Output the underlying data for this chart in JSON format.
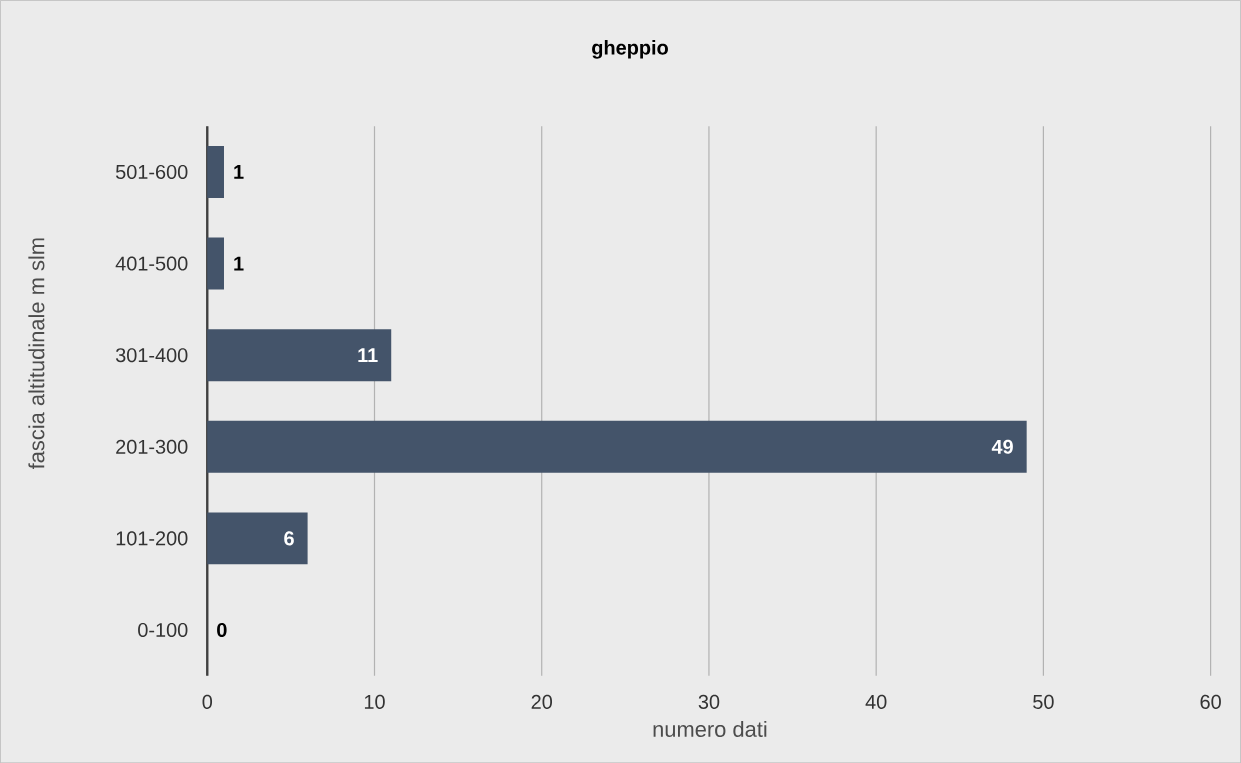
{
  "chart_data": {
    "type": "bar",
    "orientation": "horizontal",
    "title": "gheppio",
    "xlabel": "numero dati",
    "ylabel": "fascia altitudinale m slm",
    "categories": [
      "501-600",
      "401-500",
      "301-400",
      "201-300",
      "101-200",
      "0-100"
    ],
    "values": [
      1,
      1,
      11,
      49,
      6,
      0
    ],
    "color": "#44546a",
    "xlim": [
      0,
      60
    ],
    "xticks": [
      0,
      10,
      20,
      30,
      40,
      50,
      60
    ],
    "grid": "x",
    "data_labels": true
  }
}
